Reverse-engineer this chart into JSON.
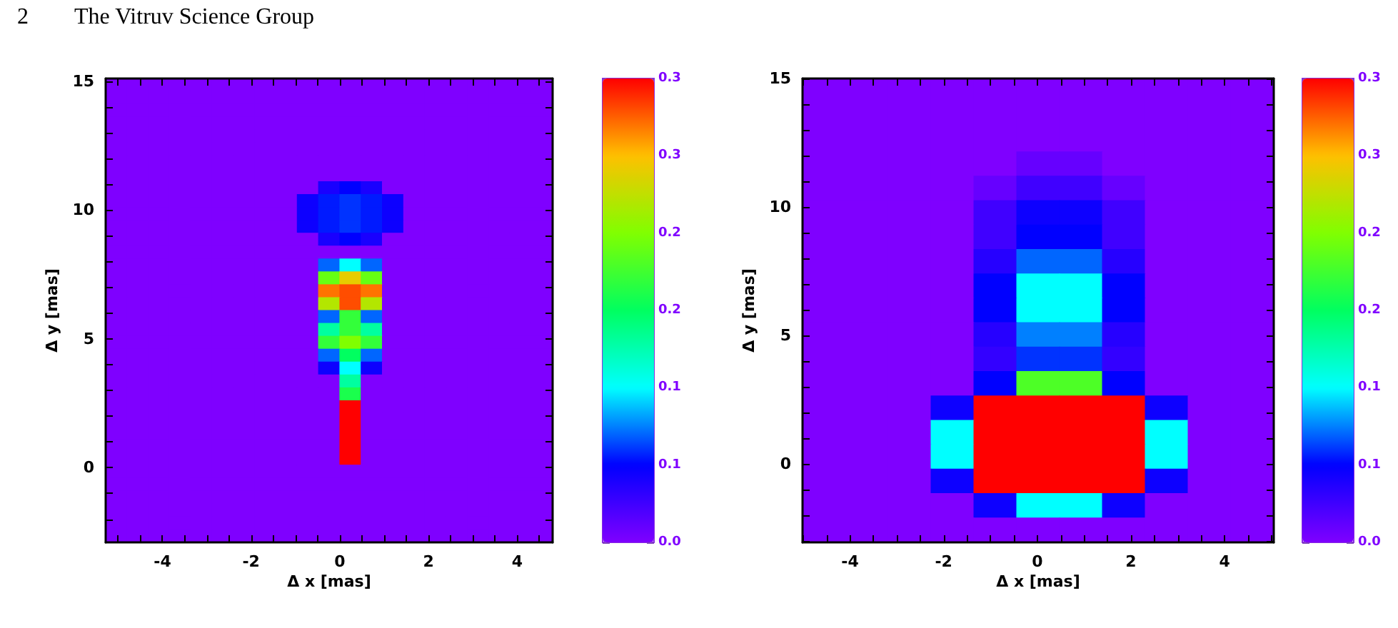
{
  "chart_data": [
    {
      "type": "heatmap",
      "annotations": [
        "2",
        "The Vitruv Science Group"
      ],
      "xlabel": "Δ x [mas]",
      "ylabel": "Δ y [mas]",
      "xlim": [
        -5.28,
        4.8
      ],
      "ylim": [
        -2.9,
        15.1
      ],
      "xticks": [
        {
          "value": -5,
          "label": null
        },
        {
          "value": -4.5,
          "label": null
        },
        -4,
        {
          "value": -3.5,
          "label": null
        },
        {
          "value": -3,
          "label": null
        },
        {
          "value": -2.5,
          "label": null
        },
        -2,
        {
          "value": -1.5,
          "label": null
        },
        {
          "value": -1,
          "label": null
        },
        {
          "value": -0.5,
          "label": null
        },
        0,
        {
          "value": 0.5,
          "label": null
        },
        {
          "value": 1,
          "label": null
        },
        {
          "value": 1.5,
          "label": null
        },
        2,
        {
          "value": 2.5,
          "label": null
        },
        {
          "value": 3,
          "label": null
        },
        {
          "value": 3.5,
          "label": null
        },
        4,
        {
          "value": 4.5,
          "label": null
        }
      ],
      "yticks": [
        {
          "value": -2,
          "label": null
        },
        {
          "value": -1,
          "label": null
        },
        0,
        {
          "value": 1,
          "label": null
        },
        {
          "value": 2,
          "label": null
        },
        {
          "value": 3,
          "label": null
        },
        {
          "value": 4,
          "label": null
        },
        5,
        {
          "value": 6,
          "label": null
        },
        {
          "value": 7,
          "label": null
        },
        {
          "value": 8,
          "label": null
        },
        {
          "value": 9,
          "label": null
        },
        10,
        {
          "value": 11,
          "label": null
        },
        {
          "value": 12,
          "label": null
        },
        {
          "value": 13,
          "label": null
        },
        {
          "value": 14,
          "label": null
        },
        15
      ],
      "clim": [
        0,
        0.3
      ],
      "cticks": [
        {
          "value": 0,
          "label": "0.0"
        },
        {
          "value": 0.05,
          "label": "0.1"
        },
        {
          "value": 0.1,
          "label": "0.1"
        },
        {
          "value": 0.15,
          "label": "0.2"
        },
        {
          "value": 0.2,
          "label": "0.2"
        },
        {
          "value": 0.25,
          "label": "0.3"
        },
        {
          "value": 0.3,
          "label": "0.3"
        }
      ],
      "cells": [
        [
          0,
          0,
          0,
          0,
          0,
          0,
          0,
          0,
          0,
          0,
          0,
          0,
          0,
          0,
          0,
          0,
          0,
          0,
          0,
          0,
          0
        ],
        [
          0,
          0,
          0,
          0,
          0,
          0,
          0,
          0,
          0,
          0,
          0,
          0,
          0,
          0,
          0,
          0,
          0,
          0,
          0,
          0,
          0
        ],
        [
          0,
          0,
          0,
          0,
          0,
          0,
          0,
          0,
          0,
          0,
          0,
          0,
          0,
          0,
          0,
          0,
          0,
          0,
          0,
          0,
          0
        ],
        [
          0,
          0,
          0,
          0,
          0,
          0,
          0,
          0,
          0,
          0,
          0,
          0,
          0,
          0,
          0,
          0,
          0,
          0,
          0,
          0,
          0
        ],
        [
          0,
          0,
          0,
          0,
          0,
          0,
          0,
          0,
          0,
          0,
          0,
          0,
          0,
          0,
          0,
          0,
          0,
          0,
          0,
          0,
          0
        ],
        [
          0,
          0,
          0,
          0,
          0,
          0,
          0,
          0,
          0,
          0,
          0,
          0,
          0,
          0,
          0,
          0,
          0,
          0,
          0,
          0,
          0
        ],
        [
          0,
          0,
          0,
          0,
          0,
          0,
          0,
          0,
          0,
          0,
          0,
          0,
          0,
          0,
          0,
          0,
          0,
          0,
          0,
          0,
          0
        ],
        [
          0,
          0,
          0,
          0,
          0,
          0,
          0,
          0,
          0,
          0,
          0,
          0,
          0,
          0,
          0,
          0,
          0,
          0,
          0,
          0,
          0
        ],
        [
          0,
          0,
          0,
          0,
          0,
          0,
          0,
          0,
          0,
          0,
          0.04,
          0.05,
          0.04,
          0,
          0,
          0,
          0,
          0,
          0,
          0,
          0
        ],
        [
          0,
          0,
          0,
          0,
          0,
          0,
          0,
          0,
          0,
          0.045,
          0.055,
          0.06,
          0.055,
          0.045,
          0,
          0,
          0,
          0,
          0,
          0,
          0
        ],
        [
          0,
          0,
          0,
          0,
          0,
          0,
          0,
          0,
          0,
          0.045,
          0.055,
          0.06,
          0.055,
          0.045,
          0,
          0,
          0,
          0,
          0,
          0,
          0
        ],
        [
          0,
          0,
          0,
          0,
          0,
          0,
          0,
          0,
          0,
          0.045,
          0.055,
          0.06,
          0.055,
          0.045,
          0,
          0,
          0,
          0,
          0,
          0,
          0
        ],
        [
          0,
          0,
          0,
          0,
          0,
          0,
          0,
          0,
          0,
          0,
          0.04,
          0.05,
          0.04,
          0,
          0,
          0,
          0,
          0,
          0,
          0,
          0
        ],
        [
          0,
          0,
          0,
          0,
          0,
          0,
          0,
          0,
          0,
          0,
          0,
          0,
          0,
          0,
          0,
          0,
          0,
          0,
          0,
          0,
          0
        ],
        [
          0,
          0,
          0,
          0,
          0,
          0,
          0,
          0,
          0,
          0,
          0.07,
          0.1,
          0.07,
          0,
          0,
          0,
          0,
          0,
          0,
          0,
          0
        ],
        [
          0,
          0,
          0,
          0,
          0,
          0,
          0,
          0,
          0,
          0,
          0.19,
          0.24,
          0.19,
          0,
          0,
          0,
          0,
          0,
          0,
          0,
          0
        ],
        [
          0,
          0,
          0,
          0,
          0,
          0,
          0,
          0,
          0,
          0,
          0.27,
          0.28,
          0.27,
          0,
          0,
          0,
          0,
          0,
          0,
          0,
          0
        ],
        [
          0,
          0,
          0,
          0,
          0,
          0,
          0,
          0,
          0,
          0,
          0.22,
          0.28,
          0.22,
          0,
          0,
          0,
          0,
          0,
          0,
          0,
          0
        ],
        [
          0,
          0,
          0,
          0,
          0,
          0,
          0,
          0,
          0,
          0,
          0.07,
          0.17,
          0.07,
          0,
          0,
          0,
          0,
          0,
          0,
          0,
          0
        ],
        [
          0,
          0,
          0,
          0,
          0,
          0,
          0,
          0,
          0,
          0,
          0.13,
          0.17,
          0.13,
          0,
          0,
          0,
          0,
          0,
          0,
          0,
          0
        ],
        [
          0,
          0,
          0,
          0,
          0,
          0,
          0,
          0,
          0,
          0,
          0.17,
          0.2,
          0.17,
          0,
          0,
          0,
          0,
          0,
          0,
          0,
          0
        ],
        [
          0,
          0,
          0,
          0,
          0,
          0,
          0,
          0,
          0,
          0,
          0.07,
          0.15,
          0.07,
          0,
          0,
          0,
          0,
          0,
          0,
          0,
          0
        ],
        [
          0,
          0,
          0,
          0,
          0,
          0,
          0,
          0,
          0,
          0,
          0.045,
          0.1,
          0.045,
          0,
          0,
          0,
          0,
          0,
          0,
          0,
          0
        ],
        [
          0,
          0,
          0,
          0,
          0,
          0,
          0,
          0,
          0,
          0,
          0,
          0.13,
          0,
          0,
          0,
          0,
          0,
          0,
          0,
          0,
          0
        ],
        [
          0,
          0,
          0,
          0,
          0,
          0,
          0,
          0,
          0,
          0,
          0,
          0.16,
          0,
          0,
          0,
          0,
          0,
          0,
          0,
          0,
          0
        ],
        [
          0,
          0,
          0,
          0,
          0,
          0,
          0,
          0,
          0,
          0,
          0,
          0.3,
          0,
          0,
          0,
          0,
          0,
          0,
          0,
          0,
          0
        ],
        [
          0,
          0,
          0,
          0,
          0,
          0,
          0,
          0,
          0,
          0,
          0,
          0.3,
          0,
          0,
          0,
          0,
          0,
          0,
          0,
          0,
          0
        ],
        [
          0,
          0,
          0,
          0,
          0,
          0,
          0,
          0,
          0,
          0,
          0,
          0.3,
          0,
          0,
          0,
          0,
          0,
          0,
          0,
          0,
          0
        ],
        [
          0,
          0,
          0,
          0,
          0,
          0,
          0,
          0,
          0,
          0,
          0,
          0.3,
          0,
          0,
          0,
          0,
          0,
          0,
          0,
          0,
          0
        ],
        [
          0,
          0,
          0,
          0,
          0,
          0,
          0,
          0,
          0,
          0,
          0,
          0.3,
          0,
          0,
          0,
          0,
          0,
          0,
          0,
          0,
          0
        ],
        [
          0,
          0,
          0,
          0,
          0,
          0,
          0,
          0,
          0,
          0,
          0,
          0,
          0,
          0,
          0,
          0,
          0,
          0,
          0,
          0,
          0
        ],
        [
          0,
          0,
          0,
          0,
          0,
          0,
          0,
          0,
          0,
          0,
          0,
          0,
          0,
          0,
          0,
          0,
          0,
          0,
          0,
          0,
          0
        ],
        [
          0,
          0,
          0,
          0,
          0,
          0,
          0,
          0,
          0,
          0,
          0,
          0,
          0,
          0,
          0,
          0,
          0,
          0,
          0,
          0,
          0
        ],
        [
          0,
          0,
          0,
          0,
          0,
          0,
          0,
          0,
          0,
          0,
          0,
          0,
          0,
          0,
          0,
          0,
          0,
          0,
          0,
          0,
          0
        ],
        [
          0,
          0,
          0,
          0,
          0,
          0,
          0,
          0,
          0,
          0,
          0,
          0,
          0,
          0,
          0,
          0,
          0,
          0,
          0,
          0,
          0
        ],
        [
          0,
          0,
          0,
          0,
          0,
          0,
          0,
          0,
          0,
          0,
          0,
          0,
          0,
          0,
          0,
          0,
          0,
          0,
          0,
          0,
          0
        ]
      ]
    },
    {
      "type": "heatmap",
      "xlabel": "Δ x [mas]",
      "ylabel": "Δ y [mas]",
      "xlim": [
        -5.015,
        5.05
      ],
      "ylim": [
        -3.045,
        15
      ],
      "xticks": [
        {
          "value": -5,
          "label": null
        },
        {
          "value": -4.5,
          "label": null
        },
        -4,
        {
          "value": -3.5,
          "label": null
        },
        {
          "value": -3,
          "label": null
        },
        {
          "value": -2.5,
          "label": null
        },
        -2,
        {
          "value": -1.5,
          "label": null
        },
        {
          "value": -1,
          "label": null
        },
        {
          "value": -0.5,
          "label": null
        },
        0,
        {
          "value": 0.5,
          "label": null
        },
        {
          "value": 1,
          "label": null
        },
        {
          "value": 1.5,
          "label": null
        },
        2,
        {
          "value": 2.5,
          "label": null
        },
        {
          "value": 3,
          "label": null
        },
        {
          "value": 3.5,
          "label": null
        },
        4,
        {
          "value": 4.5,
          "label": null
        },
        {
          "value": 5,
          "label": null
        }
      ],
      "yticks": [
        {
          "value": -3,
          "label": null
        },
        {
          "value": -2,
          "label": null
        },
        {
          "value": -1,
          "label": null
        },
        0,
        {
          "value": 1,
          "label": null
        },
        {
          "value": 2,
          "label": null
        },
        {
          "value": 3,
          "label": null
        },
        {
          "value": 4,
          "label": null
        },
        5,
        {
          "value": 6,
          "label": null
        },
        {
          "value": 7,
          "label": null
        },
        {
          "value": 8,
          "label": null
        },
        {
          "value": 9,
          "label": null
        },
        10,
        {
          "value": 11,
          "label": null
        },
        {
          "value": 12,
          "label": null
        },
        {
          "value": 13,
          "label": null
        },
        {
          "value": 14,
          "label": null
        },
        15
      ],
      "clim": [
        0,
        0.3
      ],
      "cticks": [
        {
          "value": 0,
          "label": "0.0"
        },
        {
          "value": 0.05,
          "label": "0.1"
        },
        {
          "value": 0.1,
          "label": "0.1"
        },
        {
          "value": 0.15,
          "label": "0.2"
        },
        {
          "value": 0.2,
          "label": "0.2"
        },
        {
          "value": 0.25,
          "label": "0.3"
        },
        {
          "value": 0.3,
          "label": "0.3"
        }
      ],
      "cells": [
        [
          0,
          0,
          0,
          0,
          0,
          0,
          0,
          0,
          0,
          0,
          0
        ],
        [
          0,
          0,
          0,
          0,
          0,
          0,
          0,
          0,
          0,
          0,
          0
        ],
        [
          0,
          0,
          0,
          0,
          0,
          0,
          0,
          0,
          0,
          0,
          0
        ],
        [
          0,
          0,
          0,
          0,
          0,
          0.01,
          0.01,
          0,
          0,
          0,
          0
        ],
        [
          0,
          0,
          0,
          0,
          0.01,
          0.025,
          0.025,
          0.01,
          0,
          0,
          0
        ],
        [
          0,
          0,
          0,
          0,
          0.025,
          0.045,
          0.045,
          0.025,
          0,
          0,
          0
        ],
        [
          0,
          0,
          0,
          0,
          0.025,
          0.05,
          0.05,
          0.025,
          0,
          0,
          0
        ],
        [
          0,
          0,
          0,
          0,
          0.035,
          0.07,
          0.07,
          0.035,
          0,
          0,
          0
        ],
        [
          0,
          0,
          0,
          0,
          0.05,
          0.1,
          0.1,
          0.05,
          0,
          0,
          0
        ],
        [
          0,
          0,
          0,
          0,
          0.05,
          0.1,
          0.1,
          0.05,
          0,
          0,
          0
        ],
        [
          0,
          0,
          0,
          0,
          0.035,
          0.075,
          0.075,
          0.035,
          0,
          0,
          0
        ],
        [
          0,
          0,
          0,
          0,
          0.03,
          0.06,
          0.06,
          0.03,
          0,
          0,
          0
        ],
        [
          0,
          0,
          0,
          0,
          0.05,
          0.18,
          0.18,
          0.05,
          0,
          0,
          0
        ],
        [
          0,
          0,
          0,
          0.045,
          0.3,
          0.3,
          0.3,
          0.3,
          0.045,
          0,
          0
        ],
        [
          0,
          0,
          0,
          0.1,
          0.3,
          0.3,
          0.3,
          0.3,
          0.1,
          0,
          0
        ],
        [
          0,
          0,
          0,
          0.1,
          0.3,
          0.3,
          0.3,
          0.3,
          0.1,
          0,
          0
        ],
        [
          0,
          0,
          0,
          0.045,
          0.3,
          0.3,
          0.3,
          0.3,
          0.045,
          0,
          0
        ],
        [
          0,
          0,
          0,
          0,
          0.045,
          0.1,
          0.1,
          0.045,
          0,
          0,
          0
        ],
        [
          0,
          0,
          0,
          0,
          0,
          0,
          0,
          0,
          0,
          0,
          0
        ]
      ]
    }
  ]
}
